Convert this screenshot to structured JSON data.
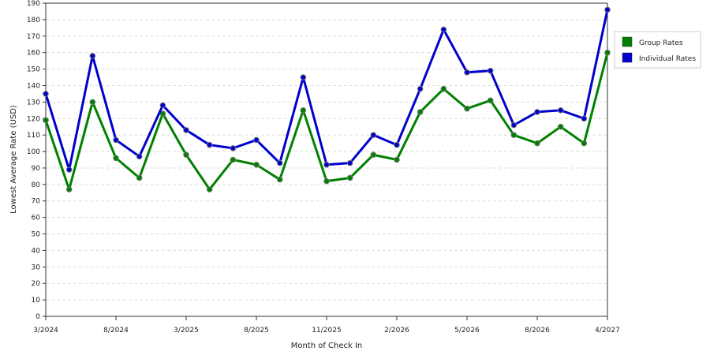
{
  "chart_data": {
    "type": "line",
    "title": "",
    "xlabel": "Month of Check In",
    "ylabel": "Lowest Average Rate (USD)",
    "ylim": [
      0,
      190
    ],
    "y_ticks": [
      0,
      10,
      20,
      30,
      40,
      50,
      60,
      70,
      80,
      90,
      100,
      110,
      120,
      130,
      140,
      150,
      160,
      170,
      180,
      190
    ],
    "x_tick_labels": [
      "3/2024",
      "8/2024",
      "3/2025",
      "8/2025",
      "11/2025",
      "2/2026",
      "5/2026",
      "8/2026",
      "4/2027"
    ],
    "x_tick_positions": [
      0,
      3,
      6,
      9,
      12,
      15,
      18,
      21,
      24
    ],
    "x_count": 25,
    "grid": true,
    "legend_position": "right",
    "series": [
      {
        "name": "Group Rates",
        "color": "#008000",
        "values": [
          119,
          77,
          130,
          96,
          84,
          123,
          98,
          77,
          95,
          92,
          83,
          125,
          82,
          84,
          98,
          95,
          124,
          138,
          126,
          131,
          110,
          105,
          115,
          105,
          160
        ]
      },
      {
        "name": "Individual Rates",
        "color": "#0000cc",
        "values": [
          135,
          89,
          158,
          107,
          97,
          128,
          113,
          104,
          102,
          107,
          93,
          145,
          92,
          93,
          110,
          104,
          138,
          174,
          148,
          149,
          116,
          124,
          125,
          120,
          186
        ]
      }
    ]
  }
}
